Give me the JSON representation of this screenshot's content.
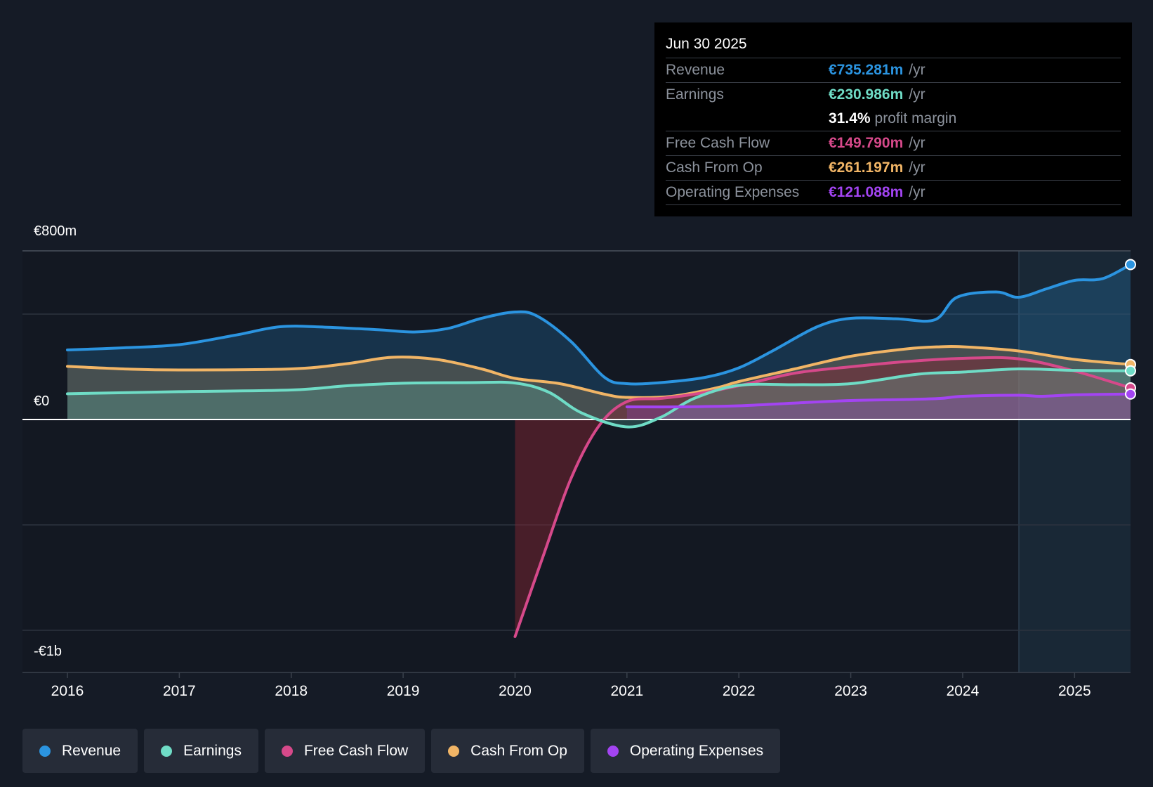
{
  "tooltip": {
    "date": "Jun 30 2025",
    "rows": [
      {
        "label": "Revenue",
        "value": "€735.281m",
        "unit": "/yr",
        "color": "#2b94e0"
      },
      {
        "label": "Earnings",
        "value": "€230.986m",
        "unit": "/yr",
        "color": "#6fdcc6"
      },
      {
        "margin_value": "31.4%",
        "margin_text": "profit margin"
      },
      {
        "label": "Free Cash Flow",
        "value": "€149.790m",
        "unit": "/yr",
        "color": "#d6498a"
      },
      {
        "label": "Cash From Op",
        "value": "€261.197m",
        "unit": "/yr",
        "color": "#f1b566"
      },
      {
        "label": "Operating Expenses",
        "value": "€121.088m",
        "unit": "/yr",
        "color": "#a344f2"
      }
    ]
  },
  "legend": [
    {
      "label": "Revenue",
      "color": "#2b94e0"
    },
    {
      "label": "Earnings",
      "color": "#6fdcc6"
    },
    {
      "label": "Free Cash Flow",
      "color": "#d6498a"
    },
    {
      "label": "Cash From Op",
      "color": "#f1b566"
    },
    {
      "label": "Operating Expenses",
      "color": "#a344f2"
    }
  ],
  "chart_data": {
    "type": "area",
    "title": "",
    "xlabel": "",
    "ylabel": "",
    "x_ticks": [
      "2016",
      "2017",
      "2018",
      "2019",
      "2020",
      "2021",
      "2022",
      "2023",
      "2024",
      "2025"
    ],
    "xlim": [
      2016,
      2025.5
    ],
    "y_tick_labels": [
      {
        "value": 800,
        "label": "€800m"
      },
      {
        "value": 0,
        "label": "€0"
      },
      {
        "value": -1000,
        "label": "-€1b"
      }
    ],
    "ylim": [
      -1200,
      800
    ],
    "gridlines_y": [
      800,
      500,
      0,
      -500,
      -1000
    ],
    "highlight_from": 2024.5,
    "series": [
      {
        "name": "Revenue",
        "color": "#2b94e0",
        "points": [
          [
            2016,
            330
          ],
          [
            2016.5,
            340
          ],
          [
            2017,
            355
          ],
          [
            2017.5,
            400
          ],
          [
            2017.9,
            440
          ],
          [
            2018.3,
            438
          ],
          [
            2018.8,
            425
          ],
          [
            2019.1,
            415
          ],
          [
            2019.4,
            432
          ],
          [
            2019.7,
            480
          ],
          [
            2020,
            510
          ],
          [
            2020.2,
            490
          ],
          [
            2020.5,
            370
          ],
          [
            2020.8,
            200
          ],
          [
            2021,
            170
          ],
          [
            2021.3,
            175
          ],
          [
            2021.7,
            200
          ],
          [
            2022,
            245
          ],
          [
            2022.3,
            325
          ],
          [
            2022.7,
            440
          ],
          [
            2023,
            480
          ],
          [
            2023.4,
            478
          ],
          [
            2023.75,
            473
          ],
          [
            2023.95,
            580
          ],
          [
            2024.3,
            605
          ],
          [
            2024.5,
            580
          ],
          [
            2024.75,
            620
          ],
          [
            2025,
            660
          ],
          [
            2025.25,
            668
          ],
          [
            2025.5,
            735
          ]
        ]
      },
      {
        "name": "Earnings",
        "color": "#6fdcc6",
        "points": [
          [
            2016,
            122
          ],
          [
            2017,
            132
          ],
          [
            2018,
            140
          ],
          [
            2018.5,
            160
          ],
          [
            2019,
            172
          ],
          [
            2019.6,
            175
          ],
          [
            2020,
            173
          ],
          [
            2020.3,
            130
          ],
          [
            2020.6,
            30
          ],
          [
            2021,
            -35
          ],
          [
            2021.3,
            10
          ],
          [
            2021.6,
            100
          ],
          [
            2022,
            162
          ],
          [
            2022.5,
            165
          ],
          [
            2023,
            170
          ],
          [
            2023.6,
            215
          ],
          [
            2024,
            225
          ],
          [
            2024.5,
            240
          ],
          [
            2025,
            233
          ],
          [
            2025.5,
            231
          ]
        ]
      },
      {
        "name": "Free Cash Flow",
        "color": "#d6498a",
        "points": [
          [
            2020,
            -1030
          ],
          [
            2020.25,
            -650
          ],
          [
            2020.5,
            -280
          ],
          [
            2020.75,
            -30
          ],
          [
            2021,
            85
          ],
          [
            2021.3,
            100
          ],
          [
            2021.6,
            120
          ],
          [
            2022,
            160
          ],
          [
            2022.5,
            220
          ],
          [
            2023,
            250
          ],
          [
            2023.5,
            275
          ],
          [
            2024,
            290
          ],
          [
            2024.5,
            288
          ],
          [
            2025,
            230
          ],
          [
            2025.5,
            150
          ]
        ]
      },
      {
        "name": "Cash From Op",
        "color": "#f1b566",
        "points": [
          [
            2016,
            252
          ],
          [
            2016.5,
            240
          ],
          [
            2017,
            235
          ],
          [
            2018,
            240
          ],
          [
            2018.5,
            265
          ],
          [
            2018.9,
            295
          ],
          [
            2019.3,
            285
          ],
          [
            2019.7,
            240
          ],
          [
            2020,
            195
          ],
          [
            2020.4,
            170
          ],
          [
            2020.8,
            120
          ],
          [
            2021,
            105
          ],
          [
            2021.4,
            110
          ],
          [
            2021.8,
            150
          ],
          [
            2022,
            180
          ],
          [
            2022.5,
            240
          ],
          [
            2023,
            300
          ],
          [
            2023.5,
            335
          ],
          [
            2023.8,
            345
          ],
          [
            2024,
            345
          ],
          [
            2024.5,
            325
          ],
          [
            2025,
            285
          ],
          [
            2025.5,
            261
          ]
        ]
      },
      {
        "name": "Operating Expenses",
        "color": "#a344f2",
        "points": [
          [
            2021,
            60
          ],
          [
            2021.5,
            60
          ],
          [
            2022,
            65
          ],
          [
            2022.5,
            78
          ],
          [
            2023,
            90
          ],
          [
            2023.5,
            95
          ],
          [
            2023.8,
            100
          ],
          [
            2024,
            110
          ],
          [
            2024.5,
            115
          ],
          [
            2024.7,
            110
          ],
          [
            2025,
            117
          ],
          [
            2025.5,
            121
          ]
        ]
      }
    ]
  }
}
